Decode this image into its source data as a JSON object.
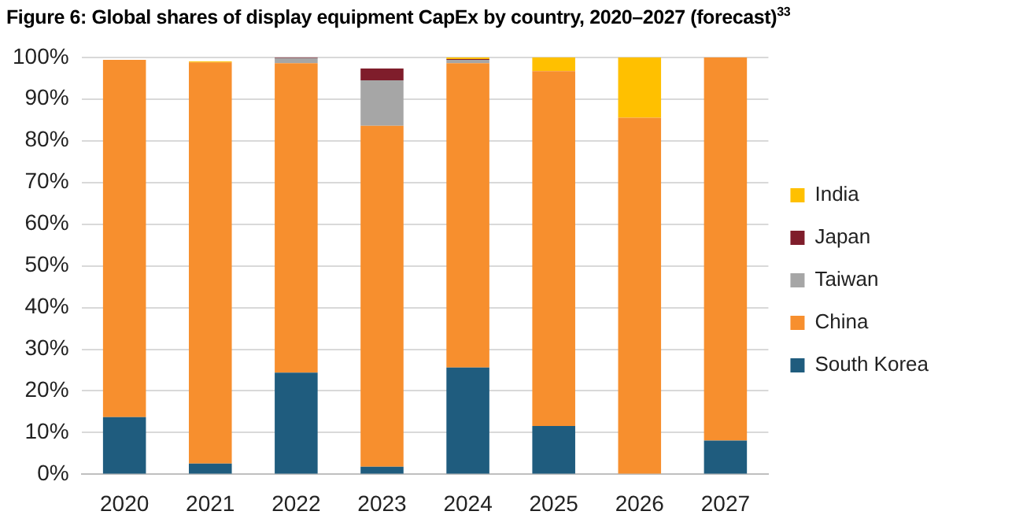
{
  "chart_data": {
    "type": "bar",
    "title": "Figure 6: Global shares of display equipment CapEx by country, 2020–2027 (forecast)$^{33}$",
    "stacked": true,
    "categories": [
      "2020",
      "2021",
      "2022",
      "2023",
      "2024",
      "2025",
      "2026",
      "2027"
    ],
    "series": [
      {
        "name": "South Korea",
        "color": "#1f5c7e",
        "values": [
          13.7,
          2.6,
          24.4,
          1.8,
          25.6,
          11.6,
          0,
          8.1
        ]
      },
      {
        "name": "China",
        "color": "#f78f2e",
        "values": [
          85.7,
          96.2,
          74.2,
          81.8,
          73.0,
          85.1,
          85.5,
          91.9
        ]
      },
      {
        "name": "Taiwan",
        "color": "#a6a6a6",
        "values": [
          0,
          0,
          1.2,
          10.9,
          0.8,
          0,
          0,
          0
        ]
      },
      {
        "name": "Japan",
        "color": "#7f1d2b",
        "values": [
          0,
          0,
          0.2,
          2.8,
          0.2,
          0,
          0,
          0
        ]
      },
      {
        "name": "India",
        "color": "#ffc000",
        "values": [
          0,
          0.2,
          0,
          0,
          0.4,
          3.3,
          14.5,
          0
        ]
      }
    ],
    "ylim": [
      0,
      100
    ],
    "yticks": [
      {
        "value": 0,
        "label": "0%"
      },
      {
        "value": 10,
        "label": "10%"
      },
      {
        "value": 20,
        "label": "20%"
      },
      {
        "value": 30,
        "label": "30%"
      },
      {
        "value": 40,
        "label": "40%"
      },
      {
        "value": 50,
        "label": "50%"
      },
      {
        "value": 60,
        "label": "60%"
      },
      {
        "value": 70,
        "label": "70%"
      },
      {
        "value": 80,
        "label": "80%"
      },
      {
        "value": 90,
        "label": "90%"
      },
      {
        "value": 100,
        "label": "100%"
      }
    ],
    "grid": "y",
    "legend": "right"
  }
}
